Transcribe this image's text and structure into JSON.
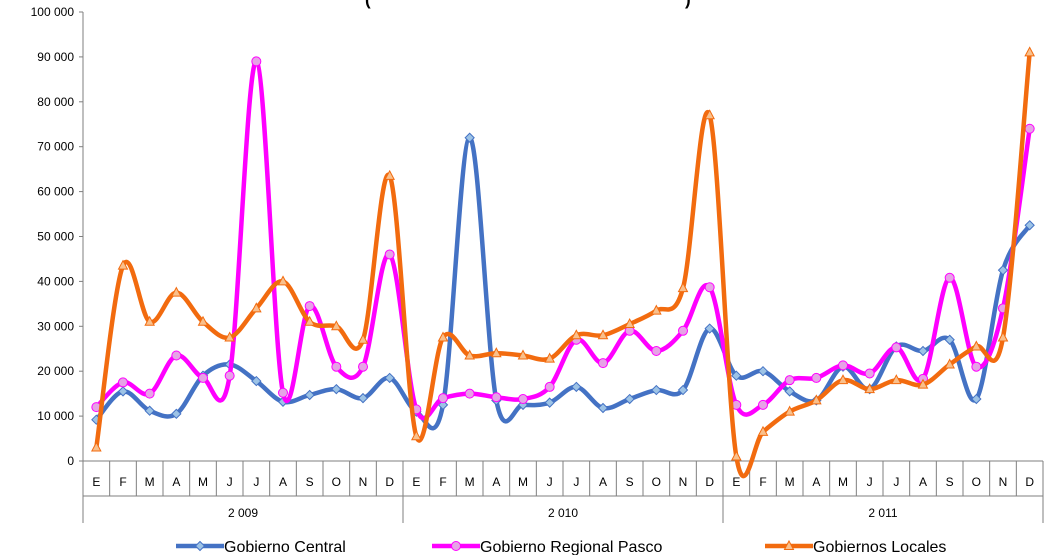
{
  "chart_data": {
    "type": "line",
    "title_fragments": {
      "left": "(",
      "right": ")"
    },
    "ylim": [
      0,
      100000
    ],
    "y_ticks": [
      "0",
      "10 000",
      "20 000",
      "30 000",
      "40 000",
      "50 000",
      "60 000",
      "70 000",
      "80 000",
      "90 000",
      "100 000"
    ],
    "y_tick_values": [
      0,
      10000,
      20000,
      30000,
      40000,
      50000,
      60000,
      70000,
      80000,
      90000,
      100000
    ],
    "months": [
      "E",
      "F",
      "M",
      "A",
      "M",
      "J",
      "J",
      "A",
      "S",
      "O",
      "N",
      "D"
    ],
    "years": [
      "2 009",
      "2 010",
      "2 011"
    ],
    "grid": false,
    "legend_position": "bottom",
    "series": [
      {
        "name": "Gobierno Central",
        "color": "#4472C4",
        "marker": "diamond",
        "values": [
          9200,
          15500,
          11200,
          10500,
          19000,
          21500,
          17800,
          13200,
          14700,
          16000,
          14000,
          18500,
          11000,
          12500,
          72000,
          13500,
          12500,
          13000,
          16500,
          11800,
          13800,
          15800,
          15800,
          29500,
          19000,
          20000,
          15500,
          13500,
          21000,
          16000,
          25500,
          24500,
          27000,
          13800,
          42500,
          52500
        ]
      },
      {
        "name": "Gobierno Regional Pasco",
        "color": "#FF00FF",
        "marker": "circle",
        "values": [
          12000,
          17500,
          15000,
          23500,
          18500,
          19000,
          89000,
          15200,
          34500,
          21000,
          21000,
          46000,
          11500,
          14000,
          15000,
          14200,
          13800,
          16500,
          27000,
          21800,
          29000,
          24500,
          29000,
          38700,
          12500,
          12500,
          18000,
          18500,
          21300,
          19500,
          25300,
          18300,
          40800,
          21000,
          34000,
          74000
        ]
      },
      {
        "name": "Gobiernos Locales",
        "color": "#F26B0F",
        "marker": "triangle",
        "values": [
          3000,
          43500,
          31000,
          37500,
          31000,
          27500,
          34000,
          40000,
          31000,
          30000,
          27000,
          63500,
          5500,
          27500,
          23500,
          24000,
          23500,
          22800,
          28000,
          28000,
          30500,
          33500,
          38500,
          77000,
          1000,
          6500,
          11000,
          13500,
          18000,
          16000,
          18000,
          17000,
          21500,
          25500,
          27500,
          91000
        ]
      }
    ]
  }
}
